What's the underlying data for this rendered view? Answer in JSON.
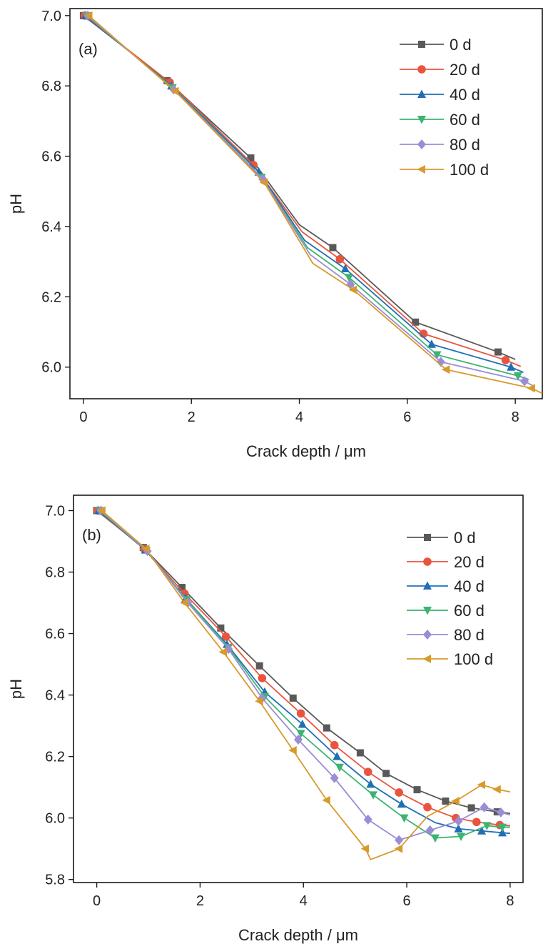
{
  "chart_data": [
    {
      "type": "line",
      "panel_label": "(a)",
      "xlabel": "Crack depth / μm",
      "ylabel": "pH",
      "xlim": [
        -0.25,
        8.5
      ],
      "ylim": [
        5.91,
        7.02
      ],
      "xticks": [
        0,
        2,
        4,
        6,
        8
      ],
      "yticks": [
        6.0,
        6.2,
        6.4,
        6.6,
        6.8,
        7.0
      ],
      "grid": false,
      "legend_position": "top-right",
      "series": [
        {
          "name": "0 d",
          "color": "#595959",
          "marker": "square",
          "points": [
            [
              0.0,
              7.0
            ],
            [
              1.55,
              6.815
            ],
            [
              3.1,
              6.595
            ],
            [
              4.0,
              6.405
            ],
            [
              4.62,
              6.34
            ],
            [
              6.15,
              6.128
            ],
            [
              7.68,
              6.043
            ],
            [
              8.0,
              6.022
            ]
          ],
          "marker_x": [
            0.0,
            1.55,
            3.1,
            4.62,
            6.15,
            7.68
          ]
        },
        {
          "name": "20 d",
          "color": "#E8553F",
          "marker": "circle",
          "points": [
            [
              0.02,
              7.0
            ],
            [
              1.6,
              6.81
            ],
            [
              3.15,
              6.575
            ],
            [
              4.05,
              6.385
            ],
            [
              4.75,
              6.307
            ],
            [
              6.3,
              6.095
            ],
            [
              7.82,
              6.02
            ],
            [
              8.1,
              6.002
            ]
          ],
          "marker_x": [
            0.02,
            1.6,
            3.15,
            4.75,
            6.3,
            7.82
          ]
        },
        {
          "name": "40 d",
          "color": "#1F6FB4",
          "marker": "triangle-up",
          "points": [
            [
              0.04,
              7.0
            ],
            [
              1.63,
              6.8
            ],
            [
              3.25,
              6.555
            ],
            [
              4.1,
              6.36
            ],
            [
              4.85,
              6.28
            ],
            [
              6.45,
              6.065
            ],
            [
              7.92,
              6.0
            ],
            [
              8.15,
              5.985
            ]
          ],
          "marker_x": [
            0.04,
            1.63,
            3.25,
            4.85,
            6.45,
            7.92
          ]
        },
        {
          "name": "60 d",
          "color": "#3CB371",
          "marker": "triangle-down",
          "points": [
            [
              0.06,
              7.0
            ],
            [
              1.65,
              6.795
            ],
            [
              3.3,
              6.54
            ],
            [
              4.15,
              6.34
            ],
            [
              4.92,
              6.255
            ],
            [
              6.55,
              6.035
            ],
            [
              8.05,
              5.975
            ],
            [
              8.25,
              5.965
            ]
          ],
          "marker_x": [
            0.06,
            1.65,
            3.3,
            4.92,
            6.55,
            8.05
          ]
        },
        {
          "name": "80 d",
          "color": "#9B8CD6",
          "marker": "diamond",
          "points": [
            [
              0.08,
              7.0
            ],
            [
              1.67,
              6.79
            ],
            [
              3.32,
              6.535
            ],
            [
              4.2,
              6.32
            ],
            [
              4.95,
              6.235
            ],
            [
              6.62,
              6.015
            ],
            [
              8.17,
              5.96
            ],
            [
              8.35,
              5.945
            ]
          ],
          "marker_x": [
            0.08,
            1.67,
            3.32,
            4.95,
            6.62,
            8.17
          ]
        },
        {
          "name": "100 d",
          "color": "#D89A2B",
          "marker": "triangle-left",
          "points": [
            [
              0.1,
              7.0
            ],
            [
              1.7,
              6.785
            ],
            [
              3.35,
              6.525
            ],
            [
              4.25,
              6.295
            ],
            [
              5.0,
              6.22
            ],
            [
              6.72,
              5.993
            ],
            [
              8.3,
              5.94
            ],
            [
              8.5,
              5.925
            ]
          ],
          "marker_x": [
            0.1,
            1.7,
            3.35,
            5.0,
            6.72,
            8.3
          ]
        }
      ]
    },
    {
      "type": "line",
      "panel_label": "(b)",
      "xlabel": "Crack depth / μm",
      "ylabel": "pH",
      "xlim": [
        -0.45,
        8.25
      ],
      "ylim": [
        5.79,
        7.05
      ],
      "xticks": [
        0,
        2,
        4,
        6,
        8
      ],
      "yticks": [
        5.8,
        6.0,
        6.2,
        6.4,
        6.6,
        6.8,
        7.0
      ],
      "grid": false,
      "legend_position": "top-right",
      "series": [
        {
          "name": "0 d",
          "color": "#595959",
          "marker": "square",
          "points": [
            [
              0.0,
              7.0
            ],
            [
              0.9,
              6.88
            ],
            [
              1.65,
              6.75
            ],
            [
              2.4,
              6.618
            ],
            [
              3.15,
              6.495
            ],
            [
              3.8,
              6.39
            ],
            [
              4.45,
              6.293
            ],
            [
              5.1,
              6.212
            ],
            [
              5.6,
              6.145
            ],
            [
              6.2,
              6.092
            ],
            [
              6.75,
              6.055
            ],
            [
              7.25,
              6.033
            ],
            [
              7.75,
              6.02
            ],
            [
              8.0,
              6.015
            ]
          ],
          "marker_x": [
            0.0,
            0.9,
            1.65,
            2.4,
            3.15,
            3.8,
            4.45,
            5.1,
            5.6,
            6.2,
            6.75,
            7.25,
            7.75
          ]
        },
        {
          "name": "20 d",
          "color": "#E8553F",
          "marker": "circle",
          "points": [
            [
              0.02,
              7.0
            ],
            [
              0.92,
              6.875
            ],
            [
              1.7,
              6.73
            ],
            [
              2.5,
              6.59
            ],
            [
              3.2,
              6.455
            ],
            [
              3.95,
              6.34
            ],
            [
              4.6,
              6.237
            ],
            [
              5.25,
              6.15
            ],
            [
              5.85,
              6.083
            ],
            [
              6.4,
              6.035
            ],
            [
              6.95,
              6.0
            ],
            [
              7.35,
              5.987
            ],
            [
              7.8,
              5.977
            ],
            [
              8.0,
              5.975
            ]
          ],
          "marker_x": [
            0.02,
            0.92,
            1.7,
            2.5,
            3.2,
            3.95,
            4.6,
            5.25,
            5.85,
            6.4,
            6.95,
            7.35,
            7.8
          ]
        },
        {
          "name": "40 d",
          "color": "#1F6FB4",
          "marker": "triangle-up",
          "points": [
            [
              0.04,
              7.0
            ],
            [
              0.94,
              6.872
            ],
            [
              1.72,
              6.715
            ],
            [
              2.52,
              6.565
            ],
            [
              3.25,
              6.41
            ],
            [
              3.98,
              6.305
            ],
            [
              4.65,
              6.2
            ],
            [
              5.3,
              6.11
            ],
            [
              5.9,
              6.045
            ],
            [
              6.55,
              5.985
            ],
            [
              7.0,
              5.965
            ],
            [
              7.45,
              5.958
            ],
            [
              7.85,
              5.952
            ],
            [
              8.0,
              5.95
            ]
          ],
          "marker_x": [
            0.04,
            0.94,
            1.72,
            2.52,
            3.25,
            3.98,
            4.65,
            5.3,
            5.9,
            7.0,
            7.45,
            7.85
          ]
        },
        {
          "name": "60 d",
          "color": "#3CB371",
          "marker": "triangle-down",
          "points": [
            [
              0.06,
              7.0
            ],
            [
              0.96,
              6.87
            ],
            [
              1.74,
              6.71
            ],
            [
              2.55,
              6.555
            ],
            [
              3.25,
              6.395
            ],
            [
              3.95,
              6.275
            ],
            [
              4.7,
              6.165
            ],
            [
              5.35,
              6.075
            ],
            [
              5.95,
              6.0
            ],
            [
              6.55,
              5.935
            ],
            [
              7.05,
              5.94
            ],
            [
              7.55,
              5.975
            ],
            [
              7.85,
              5.97
            ],
            [
              8.0,
              5.97
            ]
          ],
          "marker_x": [
            0.06,
            0.96,
            1.74,
            2.55,
            3.25,
            3.95,
            4.7,
            5.35,
            5.95,
            6.55,
            7.05,
            7.55,
            7.85
          ]
        },
        {
          "name": "80 d",
          "color": "#9B8CD6",
          "marker": "diamond",
          "points": [
            [
              0.08,
              7.0
            ],
            [
              0.98,
              6.868
            ],
            [
              1.76,
              6.7
            ],
            [
              2.55,
              6.55
            ],
            [
              3.2,
              6.39
            ],
            [
              3.9,
              6.255
            ],
            [
              4.6,
              6.13
            ],
            [
              5.25,
              5.995
            ],
            [
              5.85,
              5.928
            ],
            [
              6.45,
              5.96
            ],
            [
              7.0,
              5.99
            ],
            [
              7.5,
              6.035
            ],
            [
              7.82,
              6.018
            ],
            [
              8.0,
              6.01
            ]
          ],
          "marker_x": [
            0.08,
            0.98,
            1.76,
            2.55,
            3.2,
            3.9,
            4.6,
            5.25,
            5.85,
            6.45,
            7.0,
            7.5,
            7.82
          ]
        },
        {
          "name": "100 d",
          "color": "#D89A2B",
          "marker": "triangle-left",
          "points": [
            [
              0.1,
              7.0
            ],
            [
              0.95,
              6.876
            ],
            [
              1.7,
              6.7
            ],
            [
              2.45,
              6.54
            ],
            [
              3.15,
              6.38
            ],
            [
              3.8,
              6.22
            ],
            [
              4.45,
              6.058
            ],
            [
              5.2,
              5.9
            ],
            [
              5.3,
              5.865
            ],
            [
              5.85,
              5.9
            ],
            [
              6.4,
              6.005
            ],
            [
              6.95,
              6.055
            ],
            [
              7.45,
              6.108
            ],
            [
              7.75,
              6.093
            ],
            [
              8.0,
              6.085
            ]
          ],
          "marker_x": [
            0.1,
            0.95,
            1.7,
            2.45,
            3.15,
            3.8,
            4.45,
            5.2,
            5.85,
            6.95,
            7.45,
            7.75
          ]
        }
      ]
    }
  ]
}
